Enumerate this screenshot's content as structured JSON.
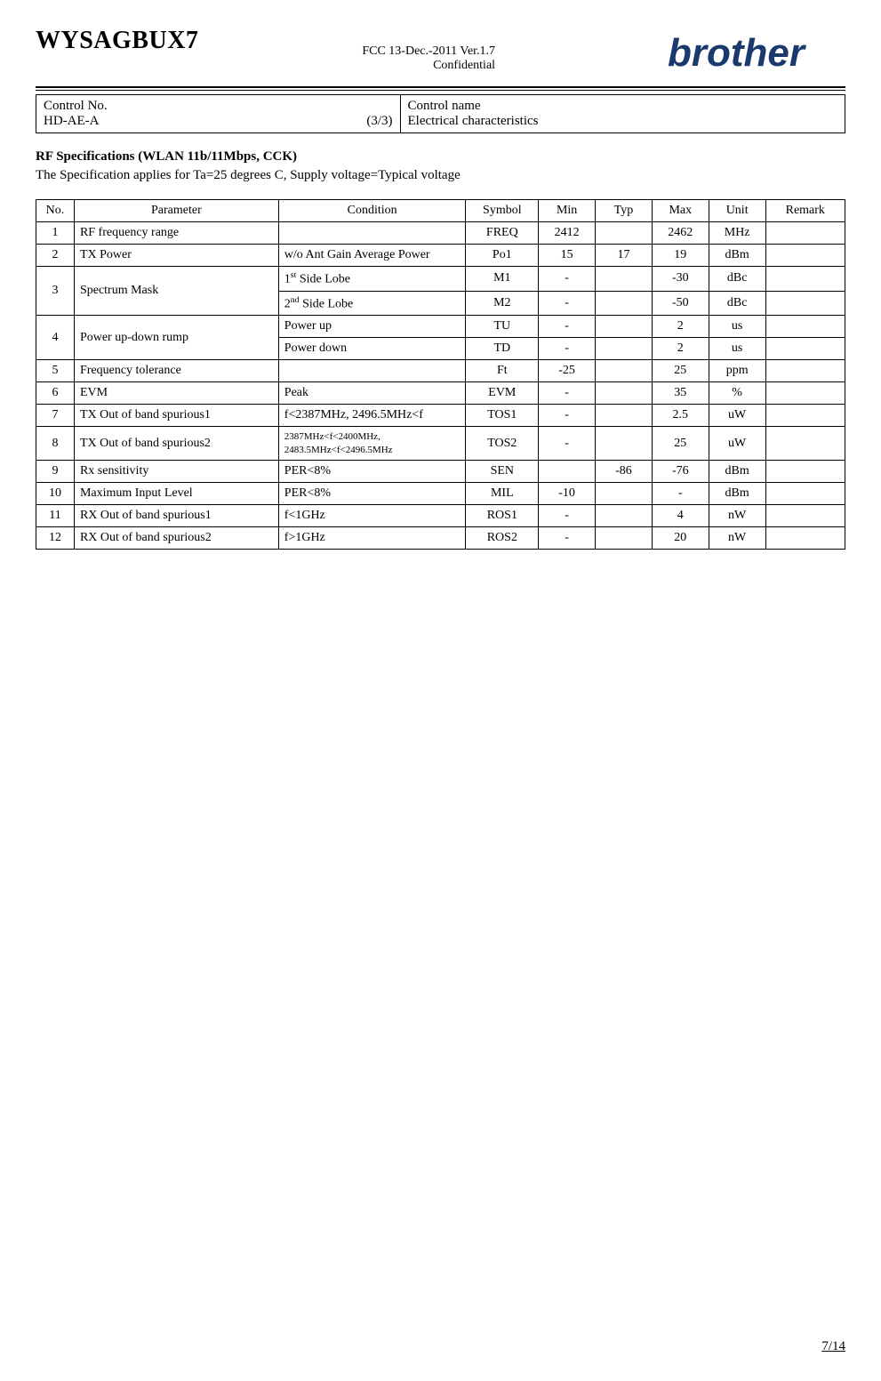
{
  "header": {
    "title": "WYSAGBUX7",
    "meta_line1": "FCC  13-Dec.-2011  Ver.1.7",
    "meta_line2": "Confidential",
    "logo_text": "brother"
  },
  "control": {
    "left_label": "Control No.",
    "left_value": "HD-AE-A",
    "left_page": "(3/3)",
    "right_label": "Control name",
    "right_value": "Electrical characteristics"
  },
  "section": {
    "title": "RF Specifications (WLAN 11b/11Mbps, CCK)",
    "subtitle": "The Specification applies for Ta=25 degrees C, Supply voltage=Typical voltage"
  },
  "table": {
    "columns": [
      "No.",
      "Parameter",
      "Condition",
      "Symbol",
      "Min",
      "Typ",
      "Max",
      "Unit",
      "Remark"
    ]
  },
  "rows": {
    "r1": {
      "no": "1",
      "param": "RF frequency range",
      "cond": "",
      "symbol": "FREQ",
      "min": "2412",
      "typ": "",
      "max": "2462",
      "unit": "MHz",
      "remark": ""
    },
    "r2": {
      "no": "2",
      "param": "TX Power",
      "cond": "w/o Ant Gain Average Power",
      "symbol": "Po1",
      "min": "15",
      "typ": "17",
      "max": "19",
      "unit": "dBm",
      "remark": ""
    },
    "r3a": {
      "no": "3",
      "param": "Spectrum Mask",
      "cond_pre": "1",
      "cond_sup": "st",
      "cond_post": " Side Lobe",
      "symbol": "M1",
      "min": "-",
      "typ": "",
      "max": "-30",
      "unit": "dBc",
      "remark": ""
    },
    "r3b": {
      "cond_pre": "2",
      "cond_sup": "nd",
      "cond_post": " Side Lobe",
      "symbol": "M2",
      "min": "-",
      "typ": "",
      "max": "-50",
      "unit": "dBc",
      "remark": ""
    },
    "r4a": {
      "no": "4",
      "param": "Power up-down rump",
      "cond": "Power up",
      "symbol": "TU",
      "min": "-",
      "typ": "",
      "max": "2",
      "unit": "us",
      "remark": ""
    },
    "r4b": {
      "cond": "Power down",
      "symbol": "TD",
      "min": "-",
      "typ": "",
      "max": "2",
      "unit": "us",
      "remark": ""
    },
    "r5": {
      "no": "5",
      "param": "Frequency tolerance",
      "cond": "",
      "symbol": "Ft",
      "min": "-25",
      "typ": "",
      "max": "25",
      "unit": "ppm",
      "remark": ""
    },
    "r6": {
      "no": "6",
      "param": "EVM",
      "cond": "Peak",
      "symbol": "EVM",
      "min": "-",
      "typ": "",
      "max": "35",
      "unit": "%",
      "remark": ""
    },
    "r7": {
      "no": "7",
      "param": "TX Out of band spurious1",
      "cond": "f<2387MHz, 2496.5MHz<f",
      "symbol": "TOS1",
      "min": "-",
      "typ": "",
      "max": "2.5",
      "unit": "uW",
      "remark": ""
    },
    "r8": {
      "no": "8",
      "param": "TX Out of band spurious2",
      "cond": "2387MHz<f<2400MHz, 2483.5MHz<f<2496.5MHz",
      "symbol": "TOS2",
      "min": "-",
      "typ": "",
      "max": "25",
      "unit": "uW",
      "remark": ""
    },
    "r9": {
      "no": "9",
      "param": "Rx sensitivity",
      "cond": "PER<8%",
      "symbol": "SEN",
      "min": "",
      "typ": "-86",
      "max": "-76",
      "unit": "dBm",
      "remark": ""
    },
    "r10": {
      "no": "10",
      "param": "Maximum Input Level",
      "cond": "PER<8%",
      "symbol": "MIL",
      "min": "-10",
      "typ": "",
      "max": "-",
      "unit": "dBm",
      "remark": ""
    },
    "r11": {
      "no": "11",
      "param": "RX Out of band spurious1",
      "cond": "f<1GHz",
      "symbol": "ROS1",
      "min": "-",
      "typ": "",
      "max": "4",
      "unit": "nW",
      "remark": ""
    },
    "r12": {
      "no": "12",
      "param": "RX Out of band spurious2",
      "cond": "f>1GHz",
      "symbol": "ROS2",
      "min": "-",
      "typ": "",
      "max": "20",
      "unit": "nW",
      "remark": ""
    }
  },
  "footer": {
    "page": "7/14"
  },
  "style": {
    "logo_color": "#1a3a6e"
  }
}
